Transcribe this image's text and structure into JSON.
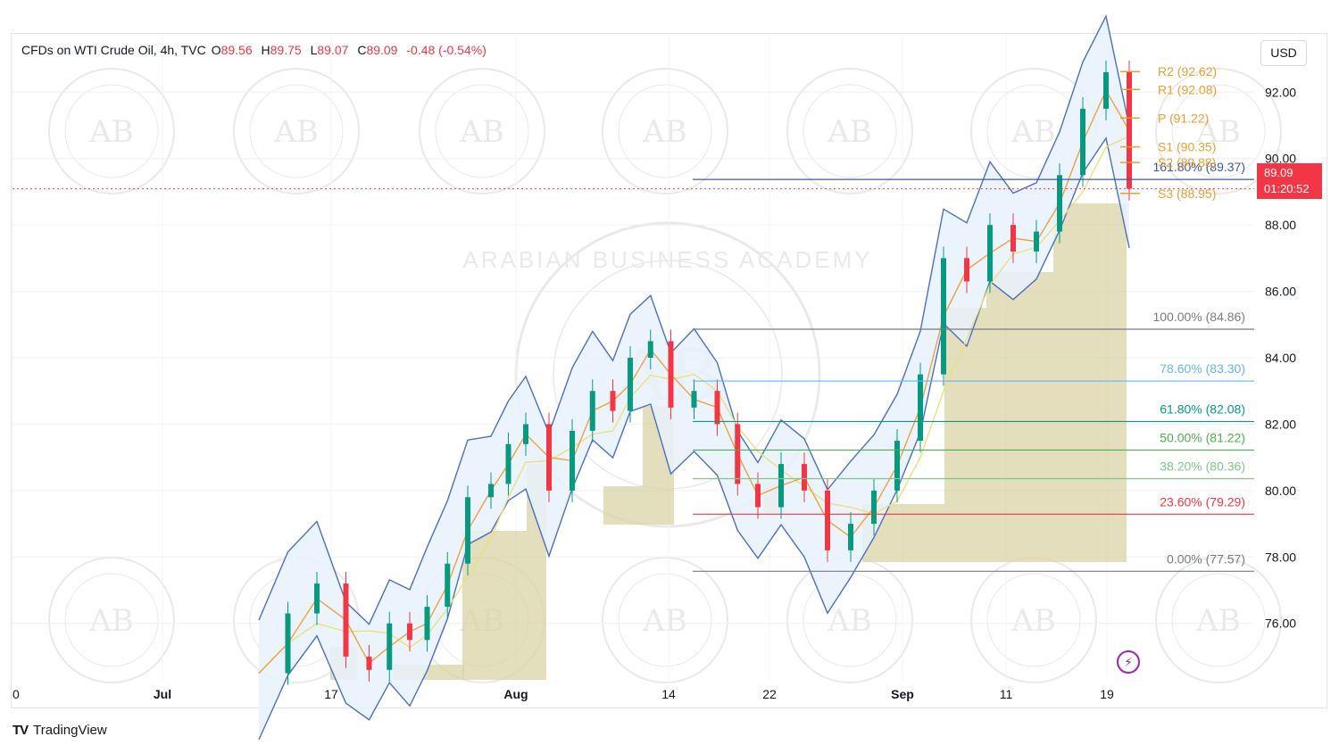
{
  "header": {
    "symbol": "CFDs on WTI Crude Oil, 4h, TVC",
    "o_label": "O",
    "o_value": "89.56",
    "h_label": "H",
    "h_value": "89.75",
    "l_label": "L",
    "l_value": "89.07",
    "c_label": "C",
    "c_value": "89.09",
    "change": "-0.48 (-0.54%)"
  },
  "currency": "USD",
  "brand": {
    "logo": "TV",
    "name": "TradingView"
  },
  "price_badge": {
    "price": "89.09",
    "countdown": "01:20:52"
  },
  "watermark": {
    "center_text": "ARABIAN BUSINESS ACADEMY",
    "monogram": "AB"
  },
  "colors": {
    "up": "#089981",
    "down": "#f23645",
    "bb": "#4a6fc4",
    "bb_fill": "#e8f2fb",
    "ma_orange": "#f0a040",
    "ma_yellow": "#ece07a",
    "box": "#d9d3a6",
    "pivot": "#e8a030"
  },
  "chart_data": {
    "type": "line",
    "title": "CFDs on WTI Crude Oil, 4h, TVC",
    "xlabel": "",
    "ylabel": "",
    "ylim": [
      74.3,
      93.7
    ],
    "y_ticks": [
      "92.00",
      "90.00",
      "88.00",
      "86.00",
      "84.00",
      "82.00",
      "80.00",
      "78.00",
      "76.00"
    ],
    "x_ticks": [
      {
        "label": "0",
        "bold": false
      },
      {
        "label": "Jul",
        "bold": true
      },
      {
        "label": "17",
        "bold": false
      },
      {
        "label": "Aug",
        "bold": true
      },
      {
        "label": "14",
        "bold": false
      },
      {
        "label": "22",
        "bold": false
      },
      {
        "label": "Sep",
        "bold": true
      },
      {
        "label": "11",
        "bold": false
      },
      {
        "label": "19",
        "bold": false
      }
    ],
    "last_price": 89.09,
    "series": [
      {
        "name": "WTI close",
        "x": [
          0,
          10,
          20,
          30,
          38,
          45,
          52,
          58,
          65,
          72,
          80,
          86,
          92,
          100,
          108,
          115,
          122,
          128,
          135,
          142,
          150,
          158,
          165,
          172,
          180,
          188,
          196,
          204,
          212,
          220,
          228,
          236,
          244,
          252,
          260,
          268,
          276,
          284,
          292,
          300
        ],
        "values": [
          74.5,
          76.3,
          77.2,
          75.0,
          74.6,
          76.0,
          75.5,
          76.5,
          77.8,
          79.8,
          80.2,
          81.4,
          82.0,
          80.0,
          81.8,
          83.0,
          82.4,
          84.0,
          84.5,
          82.5,
          83.0,
          82.0,
          80.2,
          79.5,
          80.8,
          80.0,
          78.2,
          79.0,
          80.0,
          81.5,
          83.5,
          87.0,
          86.3,
          88.0,
          87.2,
          87.8,
          89.5,
          91.5,
          92.6,
          89.09
        ]
      }
    ],
    "fibonacci": [
      {
        "label": "161.80% (89.37)",
        "value": 89.37,
        "color": "#3d5a9e"
      },
      {
        "label": "100.00% (84.86)",
        "value": 84.86,
        "color": "#787b86"
      },
      {
        "label": "78.60% (83.30)",
        "value": 83.3,
        "color": "#64b5f6"
      },
      {
        "label": "61.80% (82.08)",
        "value": 82.08,
        "color": "#089981"
      },
      {
        "label": "50.00% (81.22)",
        "value": 81.22,
        "color": "#4caf50"
      },
      {
        "label": "38.20% (80.36)",
        "value": 80.36,
        "color": "#81c784"
      },
      {
        "label": "23.60% (79.29)",
        "value": 79.29,
        "color": "#f23645"
      },
      {
        "label": "0.00% (77.57)",
        "value": 77.57,
        "color": "#787b86"
      }
    ],
    "pivots": [
      {
        "label": "R2 (92.62)",
        "value": 92.62
      },
      {
        "label": "R1 (92.08)",
        "value": 92.08
      },
      {
        "label": "P (91.22)",
        "value": 91.22
      },
      {
        "label": "S1 (90.35)",
        "value": 90.35
      },
      {
        "label": "S2 (89.88)",
        "value": 89.88
      },
      {
        "label": "S3 (88.95)",
        "value": 88.95
      }
    ],
    "grid": true,
    "indicators": [
      "Bollinger Bands",
      "Moving Average (orange)",
      "Moving Average (yellow)",
      "Pivot Points",
      "Fibonacci Retracement"
    ]
  }
}
